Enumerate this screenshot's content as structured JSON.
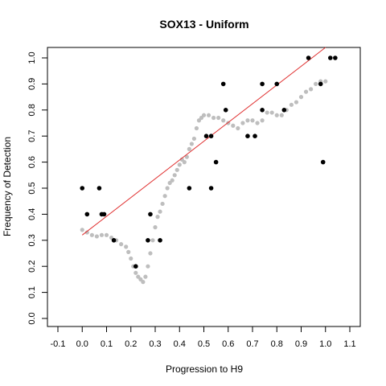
{
  "chart_data": {
    "type": "scatter",
    "title": "SOX13 - Uniform",
    "xlabel": "Progression to H9",
    "ylabel": "Frequency of Detection",
    "xlim": [
      -0.1,
      1.1
    ],
    "ylim": [
      0.0,
      1.0
    ],
    "x_ticks": [
      "-0.1",
      "0.0",
      "0.1",
      "0.2",
      "0.3",
      "0.4",
      "0.5",
      "0.6",
      "0.7",
      "0.8",
      "0.9",
      "1.0",
      "1.1"
    ],
    "y_ticks": [
      "0.0",
      "0.1",
      "0.2",
      "0.3",
      "0.4",
      "0.5",
      "0.6",
      "0.7",
      "0.8",
      "0.9",
      "1.0"
    ],
    "grid": false,
    "colors": {
      "observed": "#000000",
      "smoothed": "#bebebe",
      "fit": "#e03030"
    },
    "series": [
      {
        "style": "observed",
        "points": [
          [
            0.0,
            0.5
          ],
          [
            0.02,
            0.4
          ],
          [
            0.07,
            0.5
          ],
          [
            0.08,
            0.4
          ],
          [
            0.09,
            0.4
          ],
          [
            0.13,
            0.3
          ],
          [
            0.22,
            0.2
          ],
          [
            0.27,
            0.3
          ],
          [
            0.28,
            0.4
          ],
          [
            0.32,
            0.3
          ],
          [
            0.44,
            0.5
          ],
          [
            0.51,
            0.7
          ],
          [
            0.53,
            0.7
          ],
          [
            0.53,
            0.5
          ],
          [
            0.55,
            0.6
          ],
          [
            0.58,
            0.9
          ],
          [
            0.59,
            0.8
          ],
          [
            0.68,
            0.7
          ],
          [
            0.71,
            0.7
          ],
          [
            0.74,
            0.9
          ],
          [
            0.74,
            0.8
          ],
          [
            0.8,
            0.9
          ],
          [
            0.83,
            0.8
          ],
          [
            0.93,
            1.0
          ],
          [
            0.98,
            0.9
          ],
          [
            0.99,
            0.6
          ],
          [
            1.02,
            1.0
          ],
          [
            1.04,
            1.0
          ]
        ]
      },
      {
        "style": "smoothed",
        "points": [
          [
            0.0,
            0.34
          ],
          [
            0.02,
            0.33
          ],
          [
            0.04,
            0.32
          ],
          [
            0.06,
            0.315
          ],
          [
            0.08,
            0.32
          ],
          [
            0.1,
            0.32
          ],
          [
            0.12,
            0.31
          ],
          [
            0.14,
            0.3
          ],
          [
            0.16,
            0.285
          ],
          [
            0.18,
            0.275
          ],
          [
            0.19,
            0.255
          ],
          [
            0.2,
            0.23
          ],
          [
            0.21,
            0.2
          ],
          [
            0.22,
            0.175
          ],
          [
            0.23,
            0.16
          ],
          [
            0.24,
            0.15
          ],
          [
            0.25,
            0.14
          ],
          [
            0.26,
            0.16
          ],
          [
            0.27,
            0.2
          ],
          [
            0.28,
            0.25
          ],
          [
            0.29,
            0.3
          ],
          [
            0.3,
            0.35
          ],
          [
            0.31,
            0.39
          ],
          [
            0.32,
            0.41
          ],
          [
            0.33,
            0.44
          ],
          [
            0.34,
            0.47
          ],
          [
            0.35,
            0.5
          ],
          [
            0.36,
            0.52
          ],
          [
            0.37,
            0.53
          ],
          [
            0.38,
            0.55
          ],
          [
            0.39,
            0.57
          ],
          [
            0.4,
            0.59
          ],
          [
            0.41,
            0.61
          ],
          [
            0.42,
            0.6
          ],
          [
            0.43,
            0.62
          ],
          [
            0.44,
            0.65
          ],
          [
            0.45,
            0.67
          ],
          [
            0.46,
            0.69
          ],
          [
            0.47,
            0.73
          ],
          [
            0.48,
            0.76
          ],
          [
            0.49,
            0.77
          ],
          [
            0.5,
            0.78
          ],
          [
            0.52,
            0.78
          ],
          [
            0.54,
            0.77
          ],
          [
            0.56,
            0.77
          ],
          [
            0.58,
            0.76
          ],
          [
            0.6,
            0.75
          ],
          [
            0.62,
            0.74
          ],
          [
            0.64,
            0.73
          ],
          [
            0.66,
            0.75
          ],
          [
            0.68,
            0.76
          ],
          [
            0.7,
            0.76
          ],
          [
            0.72,
            0.75
          ],
          [
            0.74,
            0.76
          ],
          [
            0.76,
            0.79
          ],
          [
            0.78,
            0.79
          ],
          [
            0.8,
            0.78
          ],
          [
            0.82,
            0.78
          ],
          [
            0.84,
            0.8
          ],
          [
            0.86,
            0.82
          ],
          [
            0.88,
            0.83
          ],
          [
            0.9,
            0.85
          ],
          [
            0.92,
            0.87
          ],
          [
            0.94,
            0.88
          ],
          [
            0.96,
            0.9
          ],
          [
            0.98,
            0.91
          ],
          [
            1.0,
            0.91
          ]
        ]
      },
      {
        "style": "fit",
        "type": "line",
        "points": [
          [
            0.0,
            0.32
          ],
          [
            1.0,
            1.04
          ]
        ]
      }
    ]
  }
}
